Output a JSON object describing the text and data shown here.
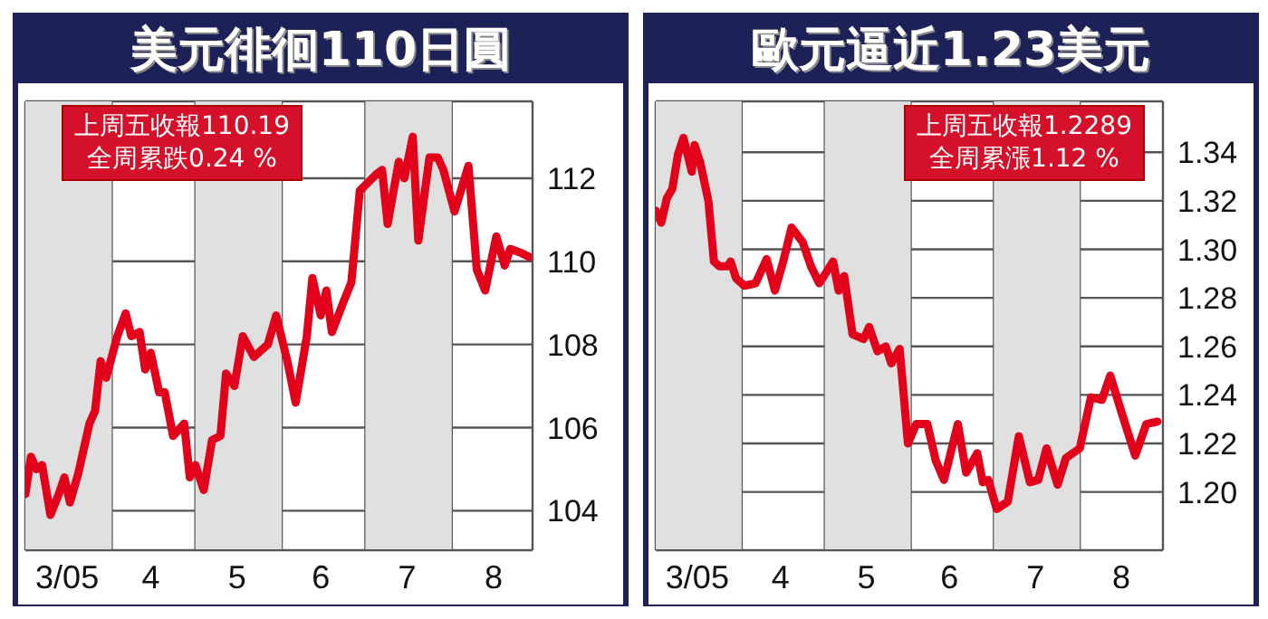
{
  "chart_data": [
    {
      "type": "line",
      "title": "美元徘徊110日圓",
      "annotations": [
        "上周五收報110.19",
        "全周累跌0.24 %"
      ],
      "x": [
        "2005-03-01",
        "2005-03-03",
        "2005-03-05",
        "2005-03-07",
        "2005-03-10",
        "2005-03-13",
        "2005-03-15",
        "2005-03-17",
        "2005-03-20",
        "2005-03-24",
        "2005-03-26",
        "2005-03-28",
        "2005-03-30",
        "2005-04-01",
        "2005-04-03",
        "2005-04-06",
        "2005-04-08",
        "2005-04-11",
        "2005-04-13",
        "2005-04-15",
        "2005-04-18",
        "2005-04-20",
        "2005-04-23",
        "2005-04-27",
        "2005-04-29",
        "2005-05-01",
        "2005-05-04",
        "2005-05-07",
        "2005-05-10",
        "2005-05-12",
        "2005-05-15",
        "2005-05-18",
        "2005-05-22",
        "2005-05-27",
        "2005-05-30",
        "2005-06-03",
        "2005-06-06",
        "2005-06-10",
        "2005-06-12",
        "2005-06-15",
        "2005-06-17",
        "2005-06-19",
        "2005-06-23",
        "2005-06-26",
        "2005-06-29",
        "2005-07-02",
        "2005-07-05",
        "2005-07-07",
        "2005-07-09",
        "2005-07-13",
        "2005-07-15",
        "2005-07-18",
        "2005-07-20",
        "2005-07-24",
        "2005-07-27",
        "2005-07-29",
        "2005-08-02",
        "2005-08-07",
        "2005-08-10",
        "2005-08-13",
        "2005-08-17",
        "2005-08-20",
        "2005-08-22",
        "2005-08-26",
        "2005-08-29"
      ],
      "series": [
        {
          "color": "#e2001a",
          "values": [
            104.4,
            105.3,
            105.0,
            105.1,
            103.9,
            104.4,
            104.8,
            104.2,
            104.9,
            106.1,
            106.4,
            107.6,
            107.2,
            107.7,
            108.2,
            108.75,
            108.2,
            108.3,
            107.4,
            107.8,
            106.85,
            106.85,
            105.8,
            106.1,
            104.8,
            105.1,
            104.5,
            105.7,
            105.8,
            107.3,
            107.0,
            108.2,
            107.7,
            108.0,
            108.7,
            107.6,
            106.6,
            108.2,
            109.6,
            108.7,
            109.3,
            108.3,
            109.0,
            109.5,
            111.7,
            111.9,
            112.1,
            112.2,
            110.9,
            112.4,
            112.0,
            113.0,
            110.5,
            112.5,
            112.5,
            112.2,
            111.2,
            112.3,
            109.8,
            109.3,
            110.6,
            109.9,
            110.3,
            110.2,
            110.1
          ]
        }
      ],
      "xlim": [
        "2005-03-01",
        "2005-08-30"
      ],
      "xticks": [
        {
          "value": "2005-03-16",
          "label": "3/05"
        },
        {
          "value": "2005-04-15",
          "label": "4"
        },
        {
          "value": "2005-05-16",
          "label": "5"
        },
        {
          "value": "2005-06-15",
          "label": "6"
        },
        {
          "value": "2005-07-16",
          "label": "7"
        },
        {
          "value": "2005-08-16",
          "label": "8"
        },
        {
          "value": "2005-04-01",
          "label": null
        },
        {
          "value": "2005-05-01",
          "label": null
        },
        {
          "value": "2005-06-01",
          "label": null
        },
        {
          "value": "2005-07-01",
          "label": null
        },
        {
          "value": "2005-08-01",
          "label": null
        }
      ],
      "ylim": [
        103.05,
        113.85
      ],
      "yticks": [
        104,
        106,
        108,
        110,
        112
      ],
      "grid": true,
      "bands": [
        {
          "axis": "x",
          "from": "2005-03-01",
          "to": "2005-04-01",
          "color": "#e0e0e0"
        },
        {
          "axis": "x",
          "from": "2005-05-01",
          "to": "2005-06-01",
          "color": "#e0e0e0"
        },
        {
          "axis": "x",
          "from": "2005-07-01",
          "to": "2005-08-01",
          "color": "#e0e0e0"
        }
      ]
    },
    {
      "type": "line",
      "title": "歐元逼近1.23美元",
      "annotations": [
        "上周五收報1.2289",
        "全周累漲1.12 %"
      ],
      "x": [
        "2005-03-01",
        "2005-03-03",
        "2005-03-05",
        "2005-03-07",
        "2005-03-09",
        "2005-03-11",
        "2005-03-14",
        "2005-03-15",
        "2005-03-17",
        "2005-03-20",
        "2005-03-22",
        "2005-03-24",
        "2005-03-27",
        "2005-03-28",
        "2005-03-30",
        "2005-04-02",
        "2005-04-06",
        "2005-04-10",
        "2005-04-13",
        "2005-04-16",
        "2005-04-19",
        "2005-04-23",
        "2005-04-26",
        "2005-04-29",
        "2005-05-04",
        "2005-05-06",
        "2005-05-08",
        "2005-05-11",
        "2005-05-15",
        "2005-05-17",
        "2005-05-20",
        "2005-05-23",
        "2005-05-25",
        "2005-05-28",
        "2005-05-31",
        "2005-06-03",
        "2005-06-07",
        "2005-06-10",
        "2005-06-13",
        "2005-06-18",
        "2005-06-21",
        "2005-06-25",
        "2005-06-27",
        "2005-06-29",
        "2005-07-02",
        "2005-07-06",
        "2005-07-10",
        "2005-07-14",
        "2005-07-17",
        "2005-07-20",
        "2005-07-24",
        "2005-07-27",
        "2005-08-01",
        "2005-08-05",
        "2005-08-09",
        "2005-08-12",
        "2005-08-16",
        "2005-08-21",
        "2005-08-25",
        "2005-08-29"
      ],
      "series": [
        {
          "color": "#e2001a",
          "values": [
            1.316,
            1.311,
            1.321,
            1.325,
            1.339,
            1.346,
            1.332,
            1.343,
            1.336,
            1.32,
            1.295,
            1.293,
            1.293,
            1.295,
            1.288,
            1.285,
            1.286,
            1.296,
            1.283,
            1.295,
            1.309,
            1.303,
            1.293,
            1.286,
            1.295,
            1.283,
            1.289,
            1.265,
            1.263,
            1.268,
            1.258,
            1.26,
            1.253,
            1.259,
            1.22,
            1.228,
            1.228,
            1.213,
            1.205,
            1.228,
            1.208,
            1.216,
            1.204,
            1.205,
            1.193,
            1.196,
            1.223,
            1.204,
            1.205,
            1.218,
            1.203,
            1.214,
            1.218,
            1.239,
            1.238,
            1.248,
            1.233,
            1.215,
            1.228,
            1.229
          ]
        }
      ],
      "xlim": [
        "2005-03-01",
        "2005-08-31"
      ],
      "xticks": [
        {
          "value": "2005-03-16",
          "label": "3/05"
        },
        {
          "value": "2005-04-15",
          "label": "4"
        },
        {
          "value": "2005-05-16",
          "label": "5"
        },
        {
          "value": "2005-06-15",
          "label": "6"
        },
        {
          "value": "2005-07-16",
          "label": "7"
        },
        {
          "value": "2005-08-16",
          "label": "8"
        },
        {
          "value": "2005-04-01",
          "label": null
        },
        {
          "value": "2005-05-01",
          "label": null
        },
        {
          "value": "2005-06-01",
          "label": null
        },
        {
          "value": "2005-07-01",
          "label": null
        },
        {
          "value": "2005-08-01",
          "label": null
        }
      ],
      "ylim": [
        1.176,
        1.361
      ],
      "yticks": [
        {
          "value": 1.2,
          "label": "1.20"
        },
        1.22,
        1.24,
        1.26,
        1.28,
        {
          "value": 1.3,
          "label": "1.30"
        },
        1.32,
        1.34
      ],
      "grid": true,
      "bands": [
        {
          "axis": "x",
          "from": "2005-03-01",
          "to": "2005-04-01",
          "color": "#e0e0e0"
        },
        {
          "axis": "x",
          "from": "2005-05-01",
          "to": "2005-06-01",
          "color": "#e0e0e0"
        },
        {
          "axis": "x",
          "from": "2005-07-01",
          "to": "2005-08-01",
          "color": "#e0e0e0"
        }
      ]
    }
  ]
}
